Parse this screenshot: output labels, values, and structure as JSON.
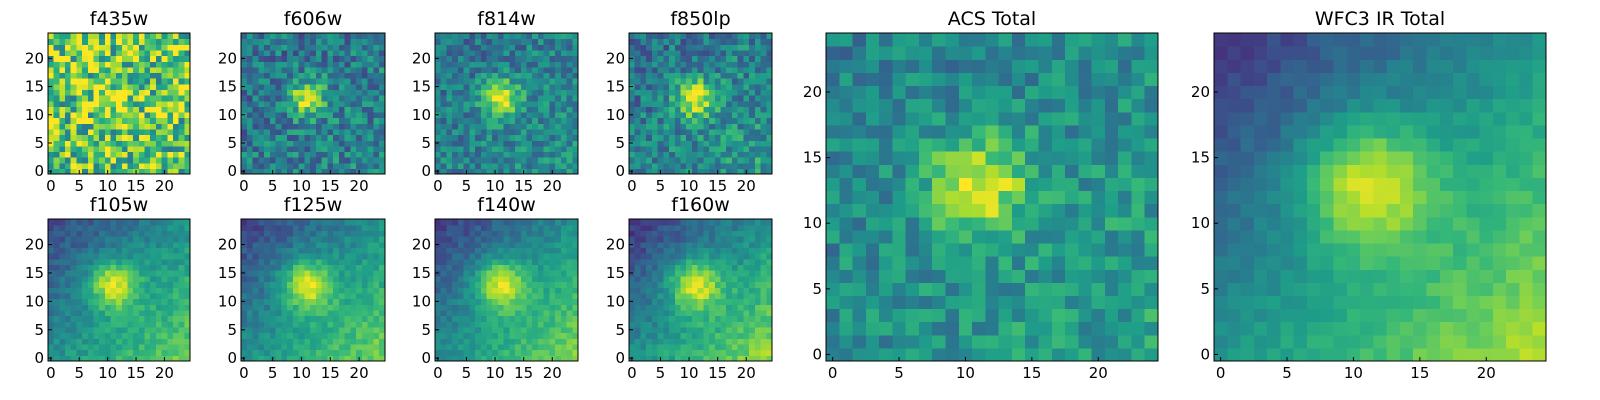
{
  "figure": {
    "colormap": "viridis",
    "colormap_stops": [
      "#440154",
      "#482878",
      "#3e4989",
      "#31688e",
      "#26828e",
      "#1f9e89",
      "#35b779",
      "#6ece58",
      "#b5de2b",
      "#fde725"
    ]
  },
  "chart_data": [
    {
      "type": "heatmap",
      "title": "f435w",
      "grid_size": 25,
      "center": [
        11,
        13
      ],
      "peak": 0.62,
      "sigma": 2.6,
      "background": 0.74,
      "noise": 0.34,
      "gradient": 0.0,
      "seed": 11,
      "xticks": [
        "0",
        "5",
        "10",
        "15",
        "20"
      ],
      "yticks": [
        "0",
        "5",
        "10",
        "15",
        "20"
      ],
      "xlim": [
        0,
        24
      ],
      "ylim": [
        0,
        24
      ]
    },
    {
      "type": "heatmap",
      "title": "f606w",
      "grid_size": 25,
      "center": [
        11,
        13
      ],
      "peak": 0.95,
      "sigma": 2.2,
      "background": 0.42,
      "noise": 0.2,
      "gradient": 0.04,
      "seed": 23,
      "xticks": [
        "0",
        "5",
        "10",
        "15",
        "20"
      ],
      "yticks": [
        "0",
        "5",
        "10",
        "15",
        "20"
      ],
      "xlim": [
        0,
        24
      ],
      "ylim": [
        0,
        24
      ]
    },
    {
      "type": "heatmap",
      "title": "f814w",
      "grid_size": 25,
      "center": [
        11,
        13
      ],
      "peak": 0.95,
      "sigma": 2.3,
      "background": 0.44,
      "noise": 0.17,
      "gradient": 0.06,
      "seed": 37,
      "xticks": [
        "0",
        "5",
        "10",
        "15",
        "20"
      ],
      "yticks": [
        "0",
        "5",
        "10",
        "15",
        "20"
      ],
      "xlim": [
        0,
        24
      ],
      "ylim": [
        0,
        24
      ]
    },
    {
      "type": "heatmap",
      "title": "f850lp",
      "grid_size": 25,
      "center": [
        11,
        13
      ],
      "peak": 0.95,
      "sigma": 2.4,
      "background": 0.45,
      "noise": 0.19,
      "gradient": 0.1,
      "seed": 53,
      "xticks": [
        "0",
        "5",
        "10",
        "15",
        "20"
      ],
      "yticks": [
        "0",
        "5",
        "10",
        "15",
        "20"
      ],
      "xlim": [
        0,
        24
      ],
      "ylim": [
        0,
        24
      ]
    },
    {
      "type": "heatmap",
      "title": "f105w",
      "grid_size": 25,
      "center": [
        11,
        13
      ],
      "peak": 0.95,
      "sigma": 3.0,
      "background": 0.5,
      "noise": 0.08,
      "gradient": 0.28,
      "seed": 71,
      "xticks": [
        "0",
        "5",
        "10",
        "15",
        "20"
      ],
      "yticks": [
        "0",
        "5",
        "10",
        "15",
        "20"
      ],
      "xlim": [
        0,
        24
      ],
      "ylim": [
        0,
        24
      ]
    },
    {
      "type": "heatmap",
      "title": "f125w",
      "grid_size": 25,
      "center": [
        11,
        13
      ],
      "peak": 0.95,
      "sigma": 3.1,
      "background": 0.5,
      "noise": 0.08,
      "gradient": 0.3,
      "seed": 89,
      "xticks": [
        "0",
        "5",
        "10",
        "15",
        "20"
      ],
      "yticks": [
        "0",
        "5",
        "10",
        "15",
        "20"
      ],
      "xlim": [
        0,
        24
      ],
      "ylim": [
        0,
        24
      ]
    },
    {
      "type": "heatmap",
      "title": "f140w",
      "grid_size": 25,
      "center": [
        11,
        13
      ],
      "peak": 0.95,
      "sigma": 3.1,
      "background": 0.5,
      "noise": 0.07,
      "gradient": 0.32,
      "seed": 97,
      "xticks": [
        "0",
        "5",
        "10",
        "15",
        "20"
      ],
      "yticks": [
        "0",
        "5",
        "10",
        "15",
        "20"
      ],
      "xlim": [
        0,
        24
      ],
      "ylim": [
        0,
        24
      ]
    },
    {
      "type": "heatmap",
      "title": "f160w",
      "grid_size": 25,
      "center": [
        11,
        13
      ],
      "peak": 0.95,
      "sigma": 3.2,
      "background": 0.5,
      "noise": 0.08,
      "gradient": 0.34,
      "seed": 103,
      "xticks": [
        "0",
        "5",
        "10",
        "15",
        "20"
      ],
      "yticks": [
        "0",
        "5",
        "10",
        "15",
        "20"
      ],
      "xlim": [
        0,
        24
      ],
      "ylim": [
        0,
        24
      ]
    },
    {
      "type": "heatmap",
      "title": "ACS Total",
      "grid_size": 25,
      "center": [
        11,
        13
      ],
      "peak": 0.95,
      "sigma": 2.6,
      "background": 0.5,
      "noise": 0.15,
      "gradient": 0.08,
      "seed": 131,
      "xticks": [
        "0",
        "5",
        "10",
        "15",
        "20"
      ],
      "yticks": [
        "0",
        "5",
        "10",
        "15",
        "20"
      ],
      "xlim": [
        0,
        24
      ],
      "ylim": [
        0,
        24
      ]
    },
    {
      "type": "heatmap",
      "title": "WFC3 IR Total",
      "grid_size": 25,
      "center": [
        11,
        13
      ],
      "peak": 0.95,
      "sigma": 3.3,
      "background": 0.52,
      "noise": 0.05,
      "gradient": 0.36,
      "seed": 149,
      "xticks": [
        "0",
        "5",
        "10",
        "15",
        "20"
      ],
      "yticks": [
        "0",
        "5",
        "10",
        "15",
        "20"
      ],
      "xlim": [
        0,
        24
      ],
      "ylim": [
        0,
        24
      ]
    }
  ]
}
